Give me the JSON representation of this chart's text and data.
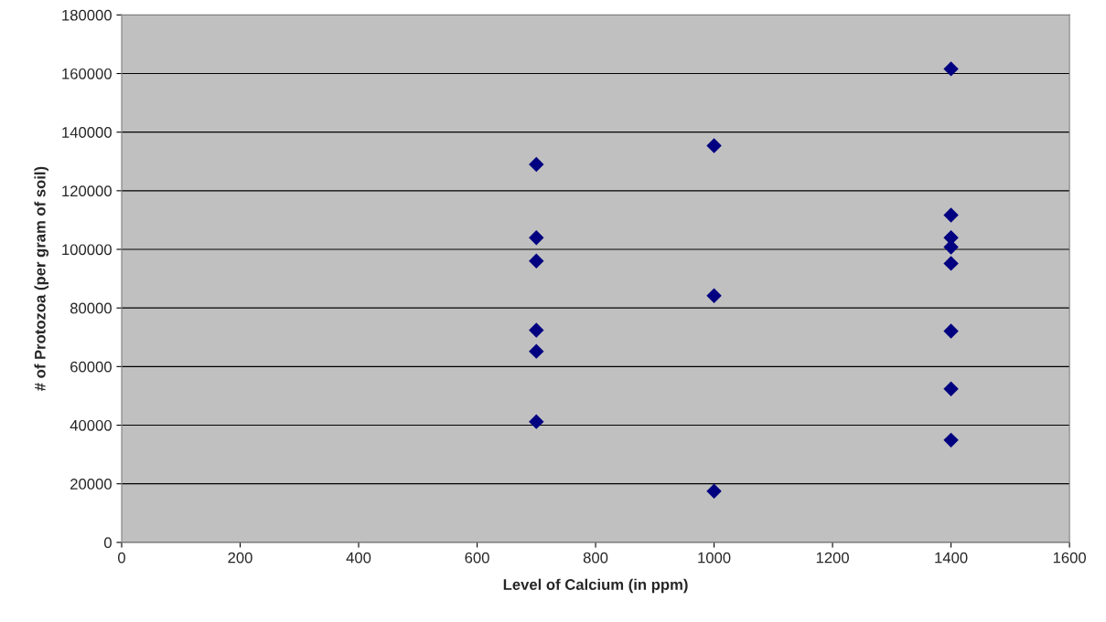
{
  "chart_data": {
    "type": "scatter",
    "xlabel": "Level of Calcium (in ppm)",
    "ylabel": "# of Protozoa (per gram of soil)",
    "x": [
      700,
      700,
      700,
      700,
      700,
      700,
      1000,
      1000,
      1000,
      1400,
      1400,
      1400,
      1400,
      1400,
      1400,
      1400,
      1400
    ],
    "series": [
      {
        "color": "#000080",
        "values": [
          129000,
          104000,
          96000,
          72400,
          65200,
          41200,
          135400,
          84200,
          17500,
          161600,
          111700,
          104000,
          100800,
          95200,
          72100,
          52400,
          34900
        ]
      }
    ],
    "xlim": [
      0,
      1600
    ],
    "xticks": [
      0,
      200,
      400,
      600,
      800,
      1000,
      1200,
      1400,
      1600
    ],
    "ylim": [
      0,
      180000
    ],
    "yticks": [
      0,
      20000,
      40000,
      60000,
      80000,
      100000,
      120000,
      140000,
      160000,
      180000
    ],
    "grid": "y",
    "marker": "diamond",
    "legend": false
  }
}
